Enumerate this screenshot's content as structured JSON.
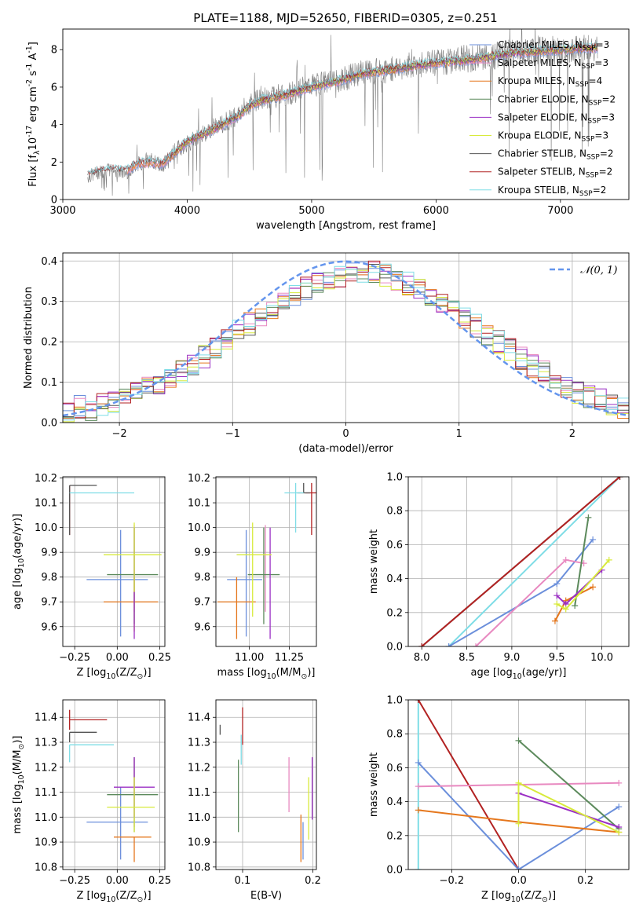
{
  "colors": {
    "chabrier_miles": "#6b8fdb",
    "salpeter_miles": "#e889c0",
    "kroupa_miles": "#e5771d",
    "chabrier_elodie": "#5c8a5c",
    "salpeter_elodie": "#9b30c4",
    "kroupa_elodie": "#d8ea3c",
    "chabrier_stelib": "#555555",
    "salpeter_stelib": "#b22222",
    "kroupa_stelib": "#7fdde6",
    "data_spectrum": "#808080",
    "gauss": "#6495ed"
  },
  "legend": [
    {
      "key": "chabrier_miles",
      "pre": "Chabrier MILES, N",
      "sub": "SSP",
      "post": "=3"
    },
    {
      "key": "salpeter_miles",
      "pre": "Salpeter MILES, N",
      "sub": "SSP",
      "post": "=3"
    },
    {
      "key": "kroupa_miles",
      "pre": "Kroupa MILES, N",
      "sub": "SSP",
      "post": "=4"
    },
    {
      "key": "chabrier_elodie",
      "pre": "Chabrier ELODIE, N",
      "sub": "SSP",
      "post": "=2"
    },
    {
      "key": "salpeter_elodie",
      "pre": "Salpeter ELODIE, N",
      "sub": "SSP",
      "post": "=3"
    },
    {
      "key": "kroupa_elodie",
      "pre": "Kroupa ELODIE, N",
      "sub": "SSP",
      "post": "=3"
    },
    {
      "key": "chabrier_stelib",
      "pre": "Chabrier STELIB, N",
      "sub": "SSP",
      "post": "=2"
    },
    {
      "key": "salpeter_stelib",
      "pre": "Salpeter STELIB, N",
      "sub": "SSP",
      "post": "=2"
    },
    {
      "key": "kroupa_stelib",
      "pre": "Kroupa STELIB, N",
      "sub": "SSP",
      "post": "=2"
    }
  ],
  "chart_data": [
    {
      "type": "line",
      "title": "PLATE=1188, MJD=52650, FIBERID=0305, z=0.251",
      "xlabel": "wavelength [Angstrom, rest frame]",
      "ylabel": "Flux [f$_\\lambda$10$^{-17}$ erg cm$^{-2}$ s$^{-1}$ A$^{-1}$]",
      "xlim": [
        3000,
        7550
      ],
      "ylim": [
        0,
        9.1
      ],
      "xticks": [
        3000,
        4000,
        5000,
        6000,
        7000
      ],
      "yticks": [
        0,
        2,
        4,
        6,
        8
      ],
      "grid": false,
      "legend_position": "right",
      "series": [
        {
          "name": "data",
          "x": [
            3200,
            3300,
            3400,
            3500,
            3600,
            3700,
            3800,
            3900,
            4000,
            4200,
            4400,
            4500,
            4600,
            4800,
            5000,
            5200,
            5400,
            5600,
            5800,
            6000,
            6200,
            6400,
            6600,
            6800,
            7000,
            7200,
            7300
          ],
          "values": [
            1.2,
            1.5,
            1.6,
            1.4,
            1.9,
            2.1,
            1.8,
            2.6,
            3.0,
            3.8,
            4.5,
            5.1,
            5.4,
            5.6,
            6.1,
            6.3,
            6.8,
            6.9,
            7.2,
            7.3,
            7.5,
            7.6,
            7.8,
            8.0,
            7.9,
            8.1,
            8.0
          ]
        },
        {
          "name": "model",
          "x": [
            3200,
            3300,
            3400,
            3500,
            3600,
            3700,
            3800,
            3900,
            4000,
            4200,
            4400,
            4500,
            4600,
            4800,
            5000,
            5200,
            5400,
            5600,
            5800,
            6000,
            6200,
            6400,
            6600,
            6800,
            7000,
            7200,
            7300
          ],
          "values": [
            1.3,
            1.5,
            1.6,
            1.5,
            1.9,
            2.0,
            1.9,
            2.5,
            3.1,
            3.7,
            4.4,
            5.0,
            5.3,
            5.6,
            6.0,
            6.3,
            6.7,
            6.9,
            7.1,
            7.3,
            7.4,
            7.6,
            7.8,
            7.9,
            8.0,
            8.1,
            8.1
          ]
        }
      ]
    },
    {
      "type": "bar",
      "xlabel": "(data-model)/error",
      "ylabel": "Normed distribution",
      "xlim": [
        -2.5,
        2.5
      ],
      "ylim": [
        0,
        0.42
      ],
      "xticks": [
        -2,
        -1,
        0,
        1,
        2
      ],
      "yticks": [
        0.0,
        0.1,
        0.2,
        0.3,
        0.4
      ],
      "grid": true,
      "legend_position": "top-right",
      "gauss_label": "𝒩(0, 1)",
      "bin_edges_start": -2.5,
      "bin_width": 0.1,
      "values": [
        0.03,
        0.04,
        0.035,
        0.045,
        0.055,
        0.06,
        0.07,
        0.085,
        0.095,
        0.11,
        0.125,
        0.145,
        0.165,
        0.185,
        0.205,
        0.225,
        0.245,
        0.265,
        0.285,
        0.3,
        0.315,
        0.33,
        0.345,
        0.35,
        0.36,
        0.37,
        0.375,
        0.37,
        0.365,
        0.355,
        0.345,
        0.33,
        0.31,
        0.295,
        0.275,
        0.255,
        0.24,
        0.22,
        0.2,
        0.18,
        0.16,
        0.14,
        0.125,
        0.105,
        0.09,
        0.075,
        0.065,
        0.055,
        0.045,
        0.035
      ]
    },
    {
      "type": "scatter",
      "xlabel": "Z [log$_{10}$(Z/Z$_\\odot$)]",
      "ylabel": "age  [log$_{10}$($age/yr$)]",
      "xlim": [
        -0.32,
        0.28
      ],
      "ylim": [
        9.52,
        10.205
      ],
      "xticks": [
        "-0.25",
        "0.00",
        "0.25"
      ],
      "yticks": [
        "9.6",
        "9.7",
        "9.8",
        "9.9",
        "10.0",
        "10.1",
        "10.2"
      ],
      "points": [
        {
          "c": "salpeter_stelib",
          "x": -0.28,
          "y": 10.17,
          "xerr": [
            0.0,
            0.0
          ],
          "yerr": [
            0.2,
            0.0
          ]
        },
        {
          "c": "chabrier_stelib",
          "x": -0.28,
          "y": 10.17,
          "xerr": [
            0.0,
            0.16
          ],
          "yerr": [
            0.2,
            0.0
          ]
        },
        {
          "c": "kroupa_stelib",
          "x": -0.28,
          "y": 10.14,
          "xerr": [
            0.0,
            0.38
          ],
          "yerr": [
            0.0,
            0.0
          ]
        },
        {
          "c": "chabrier_miles",
          "x": 0.02,
          "y": 9.79,
          "xerr": [
            0.2,
            0.16
          ],
          "yerr": [
            0.23,
            0.2
          ]
        },
        {
          "c": "salpeter_miles",
          "x": 0.1,
          "y": 9.81,
          "xerr": [
            0.0,
            0.0
          ],
          "yerr": [
            0.15,
            0.2
          ]
        },
        {
          "c": "kroupa_miles",
          "x": 0.1,
          "y": 9.7,
          "xerr": [
            0.18,
            0.14
          ],
          "yerr": [
            0.12,
            0.1
          ]
        },
        {
          "c": "chabrier_elodie",
          "x": 0.1,
          "y": 9.81,
          "xerr": [
            0.16,
            0.14
          ],
          "yerr": [
            0.2,
            0.19
          ]
        },
        {
          "c": "salpeter_elodie",
          "x": 0.1,
          "y": 9.8,
          "xerr": [
            0.0,
            0.0
          ],
          "yerr": [
            0.25,
            0.2
          ]
        },
        {
          "c": "kroupa_elodie",
          "x": 0.1,
          "y": 9.89,
          "xerr": [
            0.18,
            0.16
          ],
          "yerr": [
            0.15,
            0.13
          ]
        }
      ]
    },
    {
      "type": "scatter",
      "xlabel": "mass [log$_{10}$($M/M_\\odot$)]",
      "ylabel": "",
      "xlim": [
        10.79,
        11.42
      ],
      "ylim": [
        9.52,
        10.205
      ],
      "xticks": [
        "11.00",
        "11.25"
      ],
      "yticks": [
        "9.6",
        "9.7",
        "9.8",
        "9.9",
        "10.0",
        "10.1",
        "10.2"
      ],
      "points": [
        {
          "c": "salpeter_stelib",
          "x": 11.39,
          "y": 10.14,
          "xerr": [
            0.04,
            0.04
          ],
          "yerr": [
            0.17,
            0.04
          ]
        },
        {
          "c": "chabrier_stelib",
          "x": 11.34,
          "y": 10.14,
          "xerr": [
            0.04,
            0.04
          ],
          "yerr": [
            0.0,
            0.04
          ]
        },
        {
          "c": "kroupa_stelib",
          "x": 11.29,
          "y": 10.14,
          "xerr": [
            0.07,
            0.05
          ],
          "yerr": [
            0.16,
            0.04
          ]
        },
        {
          "c": "chabrier_miles",
          "x": 10.98,
          "y": 9.79,
          "xerr": [
            0.12,
            0.1
          ],
          "yerr": [
            0.23,
            0.2
          ]
        },
        {
          "c": "salpeter_miles",
          "x": 11.1,
          "y": 9.81,
          "xerr": [
            0.0,
            0.0
          ],
          "yerr": [
            0.15,
            0.2
          ]
        },
        {
          "c": "kroupa_miles",
          "x": 10.92,
          "y": 9.7,
          "xerr": [
            0.12,
            0.12
          ],
          "yerr": [
            0.15,
            0.1
          ]
        },
        {
          "c": "chabrier_elodie",
          "x": 11.09,
          "y": 9.81,
          "xerr": [
            0.1,
            0.1
          ],
          "yerr": [
            0.2,
            0.19
          ]
        },
        {
          "c": "salpeter_elodie",
          "x": 11.13,
          "y": 9.8,
          "xerr": [
            0.0,
            0.0
          ],
          "yerr": [
            0.25,
            0.2
          ]
        },
        {
          "c": "kroupa_elodie",
          "x": 11.02,
          "y": 9.89,
          "xerr": [
            0.1,
            0.12
          ],
          "yerr": [
            0.25,
            0.13
          ]
        }
      ]
    },
    {
      "type": "line",
      "xlabel": "age  [log$_{10}$($age/yr$)]",
      "ylabel": "mass weight",
      "xlim": [
        7.85,
        10.3
      ],
      "ylim": [
        0,
        1.0
      ],
      "xticks": [
        "8.0",
        "8.5",
        "9.0",
        "9.5",
        "10.0"
      ],
      "yticks": [
        "0.0",
        "0.2",
        "0.4",
        "0.6",
        "0.8",
        "1.0"
      ],
      "grid": true,
      "series": [
        {
          "c": "chabrier_stelib",
          "x": [
            8.0,
            10.2
          ],
          "values": [
            0.0,
            1.0
          ]
        },
        {
          "c": "kroupa_stelib",
          "x": [
            8.3,
            10.2
          ],
          "values": [
            0.0,
            1.0
          ]
        },
        {
          "c": "salpeter_stelib",
          "x": [
            8.0,
            10.2
          ],
          "values": [
            0.0,
            1.0
          ]
        },
        {
          "c": "chabrier_miles",
          "x": [
            8.3,
            9.5,
            9.9
          ],
          "values": [
            0.0,
            0.37,
            0.63
          ]
        },
        {
          "c": "salpeter_miles",
          "x": [
            8.6,
            9.6,
            9.8
          ],
          "values": [
            0.0,
            0.51,
            0.49
          ]
        },
        {
          "c": "kroupa_miles",
          "x": [
            9.48,
            9.6,
            9.9
          ],
          "values": [
            0.15,
            0.27,
            0.35
          ]
        },
        {
          "c": "chabrier_elodie",
          "x": [
            9.7,
            9.85
          ],
          "values": [
            0.24,
            0.76
          ]
        },
        {
          "c": "salpeter_elodie",
          "x": [
            9.5,
            9.6,
            10.0
          ],
          "values": [
            0.3,
            0.25,
            0.45
          ]
        },
        {
          "c": "kroupa_elodie",
          "x": [
            9.5,
            9.6,
            10.08
          ],
          "values": [
            0.25,
            0.22,
            0.51
          ]
        }
      ]
    },
    {
      "type": "scatter",
      "xlabel": "Z [log$_{10}$(Z/Z$_\\odot$)]",
      "ylabel": "mass [log$_{10}$($M/M_\\odot$)]",
      "xlim": [
        -0.32,
        0.28
      ],
      "ylim": [
        10.79,
        11.47
      ],
      "xticks": [
        "-0.25",
        "0.00",
        "0.25"
      ],
      "yticks": [
        "10.8",
        "10.9",
        "11.0",
        "11.1",
        "11.2",
        "11.3",
        "11.4"
      ],
      "points": [
        {
          "c": "salpeter_stelib",
          "x": -0.28,
          "y": 11.39,
          "xerr": [
            0.0,
            0.22
          ],
          "yerr": [
            0.04,
            0.04
          ]
        },
        {
          "c": "chabrier_stelib",
          "x": -0.28,
          "y": 11.34,
          "xerr": [
            0.0,
            0.16
          ],
          "yerr": [
            0.04,
            0.0
          ]
        },
        {
          "c": "kroupa_stelib",
          "x": -0.28,
          "y": 11.29,
          "xerr": [
            0.0,
            0.26
          ],
          "yerr": [
            0.07,
            0.0
          ]
        },
        {
          "c": "chabrier_miles",
          "x": 0.02,
          "y": 10.98,
          "xerr": [
            0.2,
            0.16
          ],
          "yerr": [
            0.15,
            0.14
          ]
        },
        {
          "c": "salpeter_miles",
          "x": 0.1,
          "y": 11.1,
          "xerr": [
            0.0,
            0.0
          ],
          "yerr": [
            0.14,
            0.14
          ]
        },
        {
          "c": "kroupa_miles",
          "x": 0.1,
          "y": 10.92,
          "xerr": [
            0.12,
            0.1
          ],
          "yerr": [
            0.1,
            0.0
          ]
        },
        {
          "c": "chabrier_elodie",
          "x": 0.1,
          "y": 11.09,
          "xerr": [
            0.16,
            0.14
          ],
          "yerr": [
            0.15,
            0.15
          ]
        },
        {
          "c": "salpeter_elodie",
          "x": 0.1,
          "y": 11.12,
          "xerr": [
            0.12,
            0.12
          ],
          "yerr": [
            0.12,
            0.12
          ]
        },
        {
          "c": "kroupa_elodie",
          "x": 0.1,
          "y": 11.04,
          "xerr": [
            0.16,
            0.12
          ],
          "yerr": [
            0.1,
            0.12
          ]
        }
      ]
    },
    {
      "type": "scatter",
      "xlabel": "E(B-V)",
      "ylabel": "",
      "xlim": [
        0.062,
        0.205
      ],
      "ylim": [
        10.79,
        11.47
      ],
      "xticks": [
        "0.1",
        "0.2"
      ],
      "yticks": [
        "10.8",
        "10.9",
        "11.0",
        "11.1",
        "11.2",
        "11.3",
        "11.4"
      ],
      "points": [
        {
          "c": "chabrier_stelib",
          "x": 0.068,
          "y": 11.35,
          "yerr": [
            0.02,
            0.02
          ]
        },
        {
          "c": "salpeter_stelib",
          "x": 0.1,
          "y": 11.39,
          "yerr": [
            0.1,
            0.05
          ]
        },
        {
          "c": "kroupa_stelib",
          "x": 0.098,
          "y": 11.28,
          "yerr": [
            0.07,
            0.05
          ]
        },
        {
          "c": "chabrier_elodie",
          "x": 0.094,
          "y": 11.09,
          "yerr": [
            0.15,
            0.14
          ]
        },
        {
          "c": "salpeter_miles",
          "x": 0.166,
          "y": 11.13,
          "yerr": [
            0.11,
            0.11
          ]
        },
        {
          "c": "kroupa_miles",
          "x": 0.183,
          "y": 10.97,
          "yerr": [
            0.15,
            0.04
          ]
        },
        {
          "c": "chabrier_miles",
          "x": 0.186,
          "y": 10.98,
          "yerr": [
            0.15,
            0.0
          ]
        },
        {
          "c": "kroupa_elodie",
          "x": 0.194,
          "y": 11.04,
          "yerr": [
            0.13,
            0.12
          ]
        },
        {
          "c": "salpeter_elodie",
          "x": 0.199,
          "y": 11.12,
          "yerr": [
            0.13,
            0.12
          ]
        }
      ]
    },
    {
      "type": "line",
      "xlabel": "Z [log$_{10}$(Z/Z$_\\odot$)]",
      "ylabel": "mass weight",
      "xlim": [
        -0.33,
        0.33
      ],
      "ylim": [
        0,
        1.0
      ],
      "xticks": [
        "-0.2",
        "0.0",
        "0.2"
      ],
      "yticks": [
        "0.0",
        "0.2",
        "0.4",
        "0.6",
        "0.8",
        "1.0"
      ],
      "grid": true,
      "series": [
        {
          "c": "kroupa_stelib",
          "x": [
            -0.3,
            -0.3
          ],
          "values": [
            0.0,
            1.0
          ]
        },
        {
          "c": "salpeter_stelib",
          "x": [
            -0.3,
            0.0
          ],
          "values": [
            1.0,
            0.0
          ]
        },
        {
          "c": "chabrier_miles",
          "x": [
            -0.3,
            0.0,
            0.3
          ],
          "values": [
            0.63,
            0.0,
            0.37
          ]
        },
        {
          "c": "salpeter_miles",
          "x": [
            -0.3,
            0.3
          ],
          "values": [
            0.49,
            0.51
          ]
        },
        {
          "c": "kroupa_miles",
          "x": [
            -0.3,
            0.0,
            0.3
          ],
          "values": [
            0.35,
            0.28,
            0.22
          ]
        },
        {
          "c": "chabrier_elodie",
          "x": [
            0.0,
            0.3
          ],
          "values": [
            0.76,
            0.24
          ]
        },
        {
          "c": "salpeter_elodie",
          "x": [
            0.0,
            0.3
          ],
          "values": [
            0.45,
            0.25
          ]
        },
        {
          "c": "kroupa_elodie",
          "x": [
            0.0,
            0.0,
            0.3
          ],
          "values": [
            0.27,
            0.51,
            0.22
          ]
        }
      ]
    }
  ]
}
